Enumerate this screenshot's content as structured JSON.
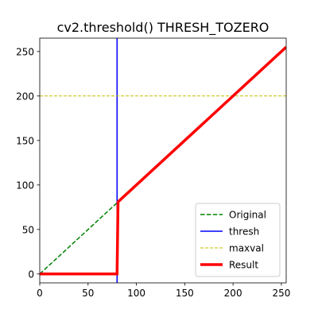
{
  "chart_data": {
    "type": "line",
    "title": "cv2.threshold() THRESH_TOZERO",
    "xlabel": "",
    "ylabel": "",
    "xlim": [
      0,
      255
    ],
    "ylim": [
      -10,
      265
    ],
    "x_ticks": [
      0,
      50,
      100,
      150,
      200,
      250
    ],
    "y_ticks": [
      0,
      50,
      100,
      150,
      200,
      250
    ],
    "grid": false,
    "legend": "lower-right",
    "series": [
      {
        "name": "Original",
        "color": "#008000",
        "style": "dashed",
        "x": [
          0,
          80
        ],
        "y": [
          0,
          80
        ]
      },
      {
        "name": "thresh",
        "color": "#0000ff",
        "style": "solid",
        "x": [
          80,
          80
        ],
        "y": [
          -10,
          265
        ]
      },
      {
        "name": "maxval",
        "color": "#bfbf00",
        "style": "dashed",
        "x": [
          0,
          255
        ],
        "y": [
          200,
          200
        ]
      },
      {
        "name": "Result",
        "color": "#ff0000",
        "style": "solid-thick",
        "x": [
          0,
          80,
          81,
          255
        ],
        "y": [
          0,
          0,
          81,
          255
        ]
      }
    ]
  }
}
